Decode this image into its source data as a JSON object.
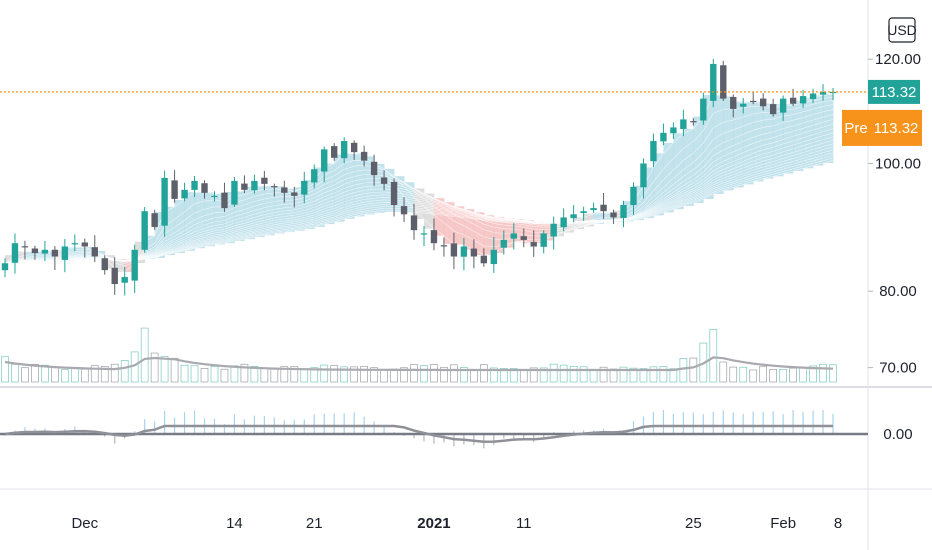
{
  "chart_data": {
    "type": "candlestick",
    "price_axis": {
      "currency": "USD",
      "ticks": [
        "120.00",
        "100.00",
        "80.00",
        "70.00"
      ],
      "tick_values": [
        120,
        100,
        80,
        70
      ],
      "ylim": [
        68.5,
        123
      ]
    },
    "indicator_axis": {
      "ticks": [
        "0.00"
      ],
      "tick_values": [
        0
      ]
    },
    "x_axis": {
      "labels": [
        "Dec",
        "14",
        "21",
        "2021",
        "11",
        "25",
        "Feb",
        "8"
      ]
    },
    "tags": {
      "last_price": {
        "text": "113.32",
        "value": 113.32,
        "color": "#22a39a"
      },
      "pre_market": {
        "label": "Pre",
        "text": "113.32",
        "value": 113.32,
        "color": "#f7921a"
      }
    },
    "colors": {
      "up": "#22a39a",
      "down": "#5d606b",
      "ribbon_bull": "#add8e6",
      "ribbon_neutral": "#d3d3d3",
      "ribbon_bear": "#f4b6b6",
      "price_line": "#f7921a",
      "histogram_pos": "#a8d3ec",
      "histogram_neg": "#b2b5be",
      "oscillator": "#8f9098"
    },
    "closes": [
      84,
      87,
      86.5,
      85.5,
      86,
      85,
      86.5,
      87,
      86.5,
      85,
      83,
      81,
      82,
      86,
      92,
      89.5,
      97.5,
      94,
      95.5,
      97,
      95,
      94.5,
      92.5,
      97,
      95.5,
      97,
      96.5,
      96,
      95,
      94.5,
      97,
      99,
      102.5,
      101,
      104,
      102,
      100.5,
      98,
      96.5,
      93,
      91.5,
      89,
      88.5,
      87,
      86.5,
      85,
      86.5,
      85,
      84,
      86,
      87.5,
      88.5,
      87.5,
      86.5,
      88.5,
      90,
      91,
      91.5,
      92,
      92.5,
      92,
      91,
      93,
      96,
      100,
      104,
      105.5,
      106.5,
      108,
      107.5,
      112,
      119,
      112,
      110,
      111,
      111.5,
      110.5,
      109,
      112,
      111,
      112.5,
      113,
      113.3,
      113.32
    ],
    "volume_spikes": [
      2,
      1,
      1,
      1,
      1,
      1,
      1,
      1,
      1,
      1,
      1,
      1,
      2,
      3,
      6,
      3,
      2,
      2,
      1,
      1,
      1,
      1,
      1,
      1,
      1,
      1,
      1,
      1,
      1,
      1,
      1,
      1,
      1,
      1,
      1,
      1,
      1,
      1,
      1,
      1,
      1,
      1,
      1,
      1,
      1,
      1,
      1,
      1,
      1,
      1,
      1,
      1,
      1,
      1,
      1,
      1,
      1,
      1,
      1,
      1,
      1,
      1,
      1,
      1,
      1,
      1,
      1,
      1,
      2,
      2,
      4,
      6,
      2,
      1,
      1,
      1,
      1,
      1,
      1,
      1,
      1,
      1,
      1,
      1
    ]
  }
}
